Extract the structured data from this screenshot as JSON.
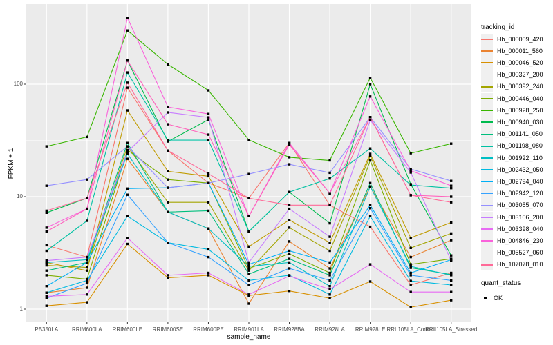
{
  "figure": {
    "y_axis_title": "FPKM + 1",
    "x_axis_title": "sample_name",
    "y_ticks": [
      "1",
      "10",
      "100"
    ],
    "legend": {
      "title": "tracking_id",
      "quant_title": "quant_status",
      "quant_items": [
        {
          "label": "OK",
          "marker": "black-square"
        }
      ]
    }
  },
  "theme": {
    "panel_bg": "#EBEBEB",
    "grid_color": "#FFFFFF",
    "tick_color": "#333333",
    "tick_text_color": "#4D4D4D",
    "title_text_color": "#000000",
    "point_color": "#000000",
    "legend_key_bg": "#F0F0F0"
  },
  "chart_data": {
    "type": "line",
    "x_type": "categorical",
    "y_scale": "log10",
    "ylim": [
      0.62,
      515
    ],
    "grid": true,
    "legend_position": "right",
    "point_shape": "square",
    "xlabel": "sample_name",
    "ylabel": "FPKM + 1",
    "y_tick_values": [
      1,
      10,
      100
    ],
    "categories": [
      "PB350LA",
      "RRIM600LA",
      "RRIM600LE",
      "RRIM600SE",
      "RRIM600PE",
      "RRIM901LA",
      "RRIM928BA",
      "RRIM928LA",
      "RRIM928LE",
      "RRII105LA_Control",
      "RRII105LA_Stressed"
    ],
    "quant_status_all_points": "OK",
    "series": [
      {
        "name": "Hb_000009_420",
        "color": "#F8766D",
        "values": [
          3.7,
          2.9,
          93,
          25.7,
          13.2,
          9.7,
          30,
          8.4,
          5.4,
          1.64,
          2.1
        ]
      },
      {
        "name": "Hb_000011_560",
        "color": "#EA8331",
        "values": [
          1.4,
          1.55,
          21.7,
          7.3,
          5.2,
          1.12,
          4.0,
          2.3,
          12.3,
          2.9,
          4.1
        ]
      },
      {
        "name": "Hb_000046_520",
        "color": "#D89000",
        "values": [
          1.07,
          1.15,
          3.8,
          1.9,
          2.0,
          1.32,
          1.45,
          1.25,
          1.76,
          1.04,
          1.2
        ]
      },
      {
        "name": "Hb_000327_200",
        "color": "#C09B00",
        "values": [
          2.6,
          2.2,
          58.5,
          16.8,
          15.2,
          3.6,
          6.2,
          3.9,
          24,
          4.3,
          5.9
        ]
      },
      {
        "name": "Hb_000392_240",
        "color": "#A3A500",
        "values": [
          2.45,
          2.35,
          28,
          8.9,
          8.9,
          2.2,
          5.3,
          3.3,
          23,
          3.5,
          4.7
        ]
      },
      {
        "name": "Hb_000446_040",
        "color": "#7CAE00",
        "values": [
          2.0,
          1.85,
          26,
          14.2,
          13.2,
          2.3,
          3.1,
          2.1,
          21,
          2.5,
          2.8
        ]
      },
      {
        "name": "Hb_000928_250",
        "color": "#39B600",
        "values": [
          28,
          34,
          300,
          150,
          88,
          32,
          22.4,
          21,
          114,
          24.3,
          29.6
        ]
      },
      {
        "name": "Hb_000940_030",
        "color": "#00BB4E",
        "values": [
          7.2,
          9.7,
          162,
          30.9,
          48.4,
          4.9,
          11,
          5.8,
          100,
          12.9,
          3.0
        ]
      },
      {
        "name": "Hb_001141_050",
        "color": "#00BF7D",
        "values": [
          2.2,
          2.6,
          30,
          7.3,
          7.5,
          2.05,
          2.8,
          2.0,
          13.2,
          2.33,
          2.03
        ]
      },
      {
        "name": "Hb_001198_080",
        "color": "#00C1A3",
        "values": [
          3.3,
          6.1,
          127,
          31.8,
          31.8,
          4.9,
          11,
          14.5,
          26.8,
          12.7,
          11.9
        ]
      },
      {
        "name": "Hb_001922_110",
        "color": "#00BFC4",
        "values": [
          2.6,
          2.75,
          24,
          7.3,
          5.2,
          2.4,
          2.6,
          1.6,
          12.3,
          2.4,
          2.0
        ]
      },
      {
        "name": "Hb_002432_050",
        "color": "#00BAE0",
        "values": [
          1.4,
          1.8,
          6.7,
          3.9,
          3.4,
          1.8,
          2.0,
          1.35,
          6.7,
          1.78,
          1.64
        ]
      },
      {
        "name": "Hb_002794_040",
        "color": "#00B0F6",
        "values": [
          1.6,
          2.6,
          11.8,
          12.0,
          13.2,
          2.5,
          3.3,
          2.6,
          8.4,
          2.1,
          2.75
        ]
      },
      {
        "name": "Hb_002942_120",
        "color": "#35A2FF",
        "values": [
          1.25,
          1.7,
          10.4,
          3.9,
          2.9,
          1.64,
          2.3,
          1.8,
          7.9,
          2.0,
          1.8
        ]
      },
      {
        "name": "Hb_003055_070",
        "color": "#9590FF",
        "values": [
          12.5,
          14.2,
          28,
          12.0,
          13.2,
          15.9,
          19.4,
          16.3,
          50.9,
          17.6,
          13.8
        ]
      },
      {
        "name": "Hb_003106_200",
        "color": "#C77CFF",
        "values": [
          2.7,
          2.9,
          25,
          56,
          50.7,
          2.6,
          7.8,
          4.4,
          48,
          16.4,
          2.7
        ]
      },
      {
        "name": "Hb_003398_040",
        "color": "#E76BF3",
        "values": [
          1.3,
          1.35,
          4.3,
          2.0,
          2.1,
          1.35,
          1.97,
          1.5,
          2.5,
          1.42,
          1.42
        ]
      },
      {
        "name": "Hb_004846_230",
        "color": "#FA62DB",
        "values": [
          5.3,
          7.8,
          390,
          62.7,
          54.3,
          6.7,
          30,
          10.7,
          77.8,
          17.0,
          12.5
        ]
      },
      {
        "name": "Hb_005527_060",
        "color": "#FF62BC",
        "values": [
          4.9,
          7.8,
          162,
          44,
          35.6,
          6.7,
          29,
          10.7,
          50.9,
          10.3,
          10.0
        ]
      },
      {
        "name": "Hb_107078_010",
        "color": "#FF6A98",
        "values": [
          7.5,
          9.7,
          103,
          25.7,
          16,
          9.7,
          8.4,
          8.4,
          50.9,
          10.3,
          8.9
        ]
      }
    ]
  }
}
